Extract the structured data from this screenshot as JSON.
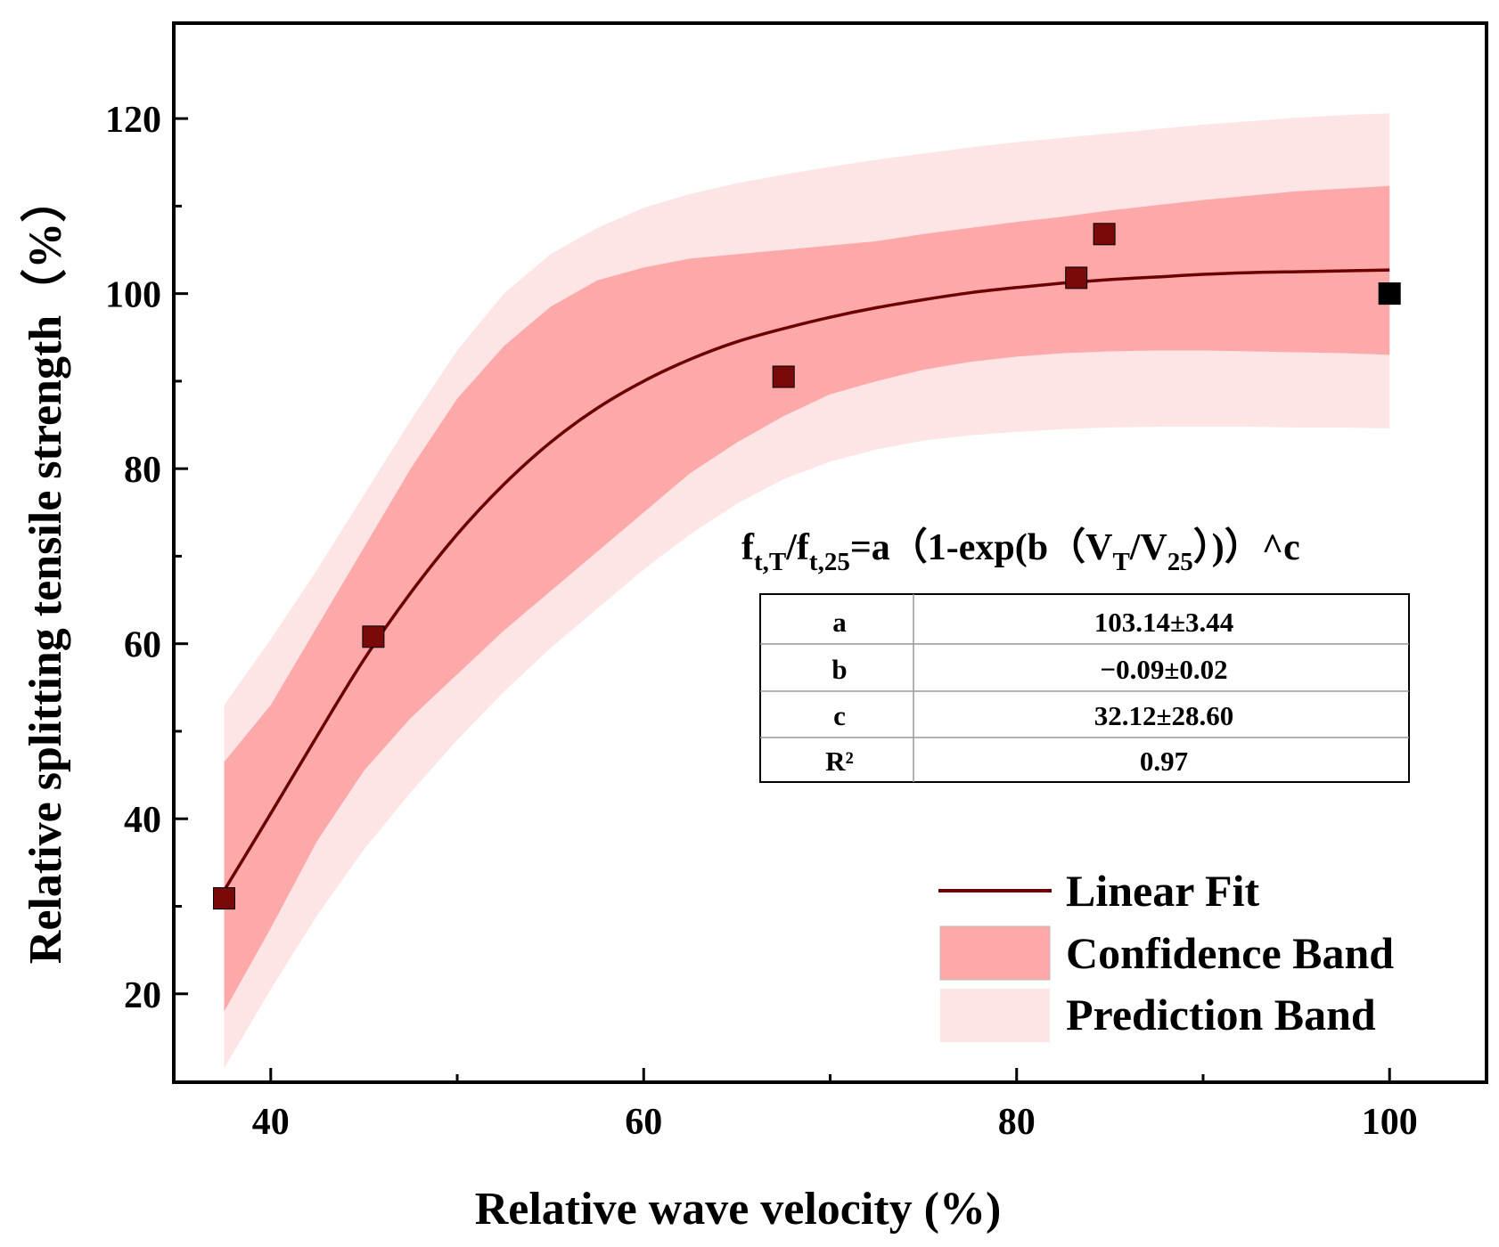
{
  "chart_data": {
    "type": "scatter",
    "xlabel": "Relative wave velocity (%)",
    "ylabel": "Relative splitting tensile strength（%）",
    "xlim": [
      34.8,
      105.2
    ],
    "ylim": [
      9.9,
      130.9
    ],
    "x_ticks": [
      40,
      60,
      80,
      100
    ],
    "y_ticks": [
      20,
      40,
      60,
      80,
      100,
      120
    ],
    "x_minor_ticks": [
      50,
      70,
      90
    ],
    "y_minor_ticks": [
      30,
      50,
      70,
      90,
      110
    ],
    "grid": false,
    "points": [
      {
        "x": 37.5,
        "y": 30.9
      },
      {
        "x": 45.5,
        "y": 60.8
      },
      {
        "x": 67.5,
        "y": 90.5
      },
      {
        "x": 83.2,
        "y": 101.8
      },
      {
        "x": 84.7,
        "y": 106.8
      },
      {
        "x": 100.0,
        "y": 100.0
      }
    ],
    "fit_curve": {
      "name": "Linear Fit",
      "x": [
        37.5,
        40,
        42.5,
        45,
        47.5,
        50,
        52.5,
        55,
        57.5,
        60,
        62.5,
        65,
        67.5,
        70,
        72.5,
        75,
        77.5,
        80,
        82.5,
        85,
        87.5,
        90,
        92.5,
        95,
        97.5,
        100
      ],
      "y": [
        31.8,
        40.6,
        49.5,
        58.2,
        65.8,
        72.5,
        78.2,
        83.0,
        86.9,
        90.0,
        92.5,
        94.5,
        96.0,
        97.3,
        98.4,
        99.3,
        100.1,
        100.7,
        101.2,
        101.6,
        101.9,
        102.2,
        102.4,
        102.5,
        102.6,
        102.7
      ]
    },
    "confidence_band": {
      "name": "Confidence Band",
      "x": [
        37.5,
        40,
        42.5,
        45,
        47.5,
        50,
        52.5,
        55,
        57.5,
        60,
        62.5,
        65,
        67.5,
        70,
        72.5,
        75,
        77.5,
        80,
        82.5,
        85,
        87.5,
        90,
        92.5,
        95,
        97.5,
        100
      ],
      "upper": [
        46.5,
        53.0,
        62.0,
        71.0,
        80.0,
        88.0,
        94.0,
        98.5,
        101.5,
        103.0,
        104.0,
        104.5,
        105.0,
        105.5,
        106.0,
        106.8,
        107.5,
        108.2,
        108.8,
        109.5,
        110.1,
        110.7,
        111.2,
        111.7,
        112.0,
        112.3
      ],
      "lower": [
        18.0,
        27.5,
        37.5,
        45.5,
        51.5,
        56.5,
        61.5,
        66.0,
        70.5,
        75.0,
        79.5,
        83.0,
        86.0,
        88.5,
        90.0,
        91.3,
        92.2,
        92.8,
        93.2,
        93.4,
        93.5,
        93.5,
        93.4,
        93.3,
        93.2,
        93.0
      ]
    },
    "prediction_band": {
      "name": "Prediction Band",
      "x": [
        37.5,
        40,
        42.5,
        45,
        47.5,
        50,
        52.5,
        55,
        57.5,
        60,
        62.5,
        65,
        67.5,
        70,
        72.5,
        75,
        77.5,
        80,
        82.5,
        85,
        87.5,
        90,
        92.5,
        95,
        97.5,
        100
      ],
      "upper": [
        53.0,
        60.5,
        68.5,
        77.0,
        85.5,
        93.5,
        100.0,
        104.5,
        107.5,
        109.8,
        111.4,
        112.6,
        113.6,
        114.5,
        115.3,
        116.0,
        116.7,
        117.3,
        117.8,
        118.3,
        118.8,
        119.3,
        119.7,
        120.1,
        120.4,
        120.6
      ],
      "lower": [
        11.5,
        20.5,
        29.0,
        36.5,
        43.0,
        49.0,
        54.5,
        59.5,
        64.0,
        68.5,
        72.5,
        76.0,
        78.8,
        80.8,
        82.2,
        83.2,
        83.8,
        84.2,
        84.5,
        84.7,
        84.8,
        84.8,
        84.8,
        84.7,
        84.7,
        84.6
      ]
    },
    "colors": {
      "curve": "#6b0000",
      "marker": "#7a0a0a",
      "marker_edge": "#000000",
      "confidence": "#fda9aa",
      "prediction": "#fde5e5",
      "axis": "#000000"
    },
    "legend": {
      "position": "bottom-right",
      "entries": [
        {
          "label": "Linear Fit",
          "kind": "line"
        },
        {
          "label": "Confidence Band",
          "kind": "confidence"
        },
        {
          "label": "Prediction Band",
          "kind": "prediction"
        }
      ]
    },
    "equation": {
      "text_parts": [
        "f",
        "t,T",
        "/f",
        "t,25",
        "=a（1-exp(b（V",
        "T",
        "/V",
        "25",
        "）)）^c"
      ]
    },
    "param_table": {
      "rows": [
        {
          "name": "a",
          "value": "103.14±3.44"
        },
        {
          "name": "b",
          "value": "−0.09±0.02"
        },
        {
          "name": "c",
          "value": "32.12±28.60"
        },
        {
          "name": "R²",
          "value": "0.97"
        }
      ]
    }
  }
}
